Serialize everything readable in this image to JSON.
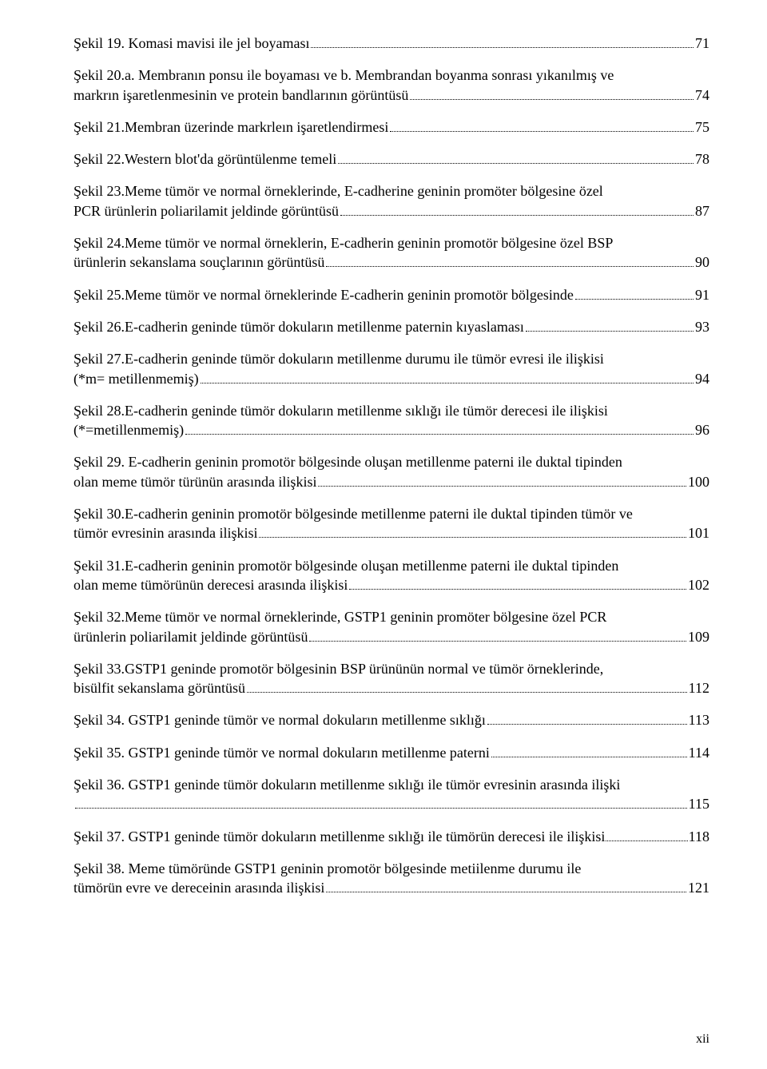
{
  "page_label": "xii",
  "entries": [
    {
      "text": "Şekil 19. Komasi mavisi ile jel boyaması",
      "page": "71",
      "wrap": false
    },
    {
      "text_lines": [
        "Şekil 20.a. Membranın ponsu ile boyaması ve  b. Membrandan boyanma sonrası  yıkanılmış ve",
        "markrın işaretlenmesinin ve protein bandlarının görüntüsü"
      ],
      "page": "74",
      "wrap": true
    },
    {
      "text": "Şekil 21.Membran üzerinde markrleın işaretlendirmesi",
      "page": "75",
      "wrap": false
    },
    {
      "text": "Şekil 22.Western blot'da görüntülenme temeli",
      "page": "78",
      "wrap": false
    },
    {
      "text_lines": [
        "Şekil 23.Meme tümör ve normal örneklerinde, E-cadherine geninin promöter bölgesine özel",
        "PCR ürünlerin poliarilamit jeldinde görüntüsü"
      ],
      "page": "87",
      "wrap": true
    },
    {
      "text_lines": [
        "Şekil 24.Meme tümör ve normal örneklerin, E-cadherin geninin promotör bölgesine özel BSP",
        "ürünlerin sekanslama souçlarının görüntüsü"
      ],
      "page": "90",
      "wrap": true
    },
    {
      "text": "Şekil 25.Meme tümör ve normal örneklerinde E-cadherin geninin promotör bölgesinde",
      "page": "91",
      "wrap": false
    },
    {
      "text": "Şekil 26.E-cadherin geninde tümör  dokuların metillenme paternin kıyaslaması",
      "page": "93",
      "wrap": false
    },
    {
      "text_lines": [
        "Şekil 27.E-cadherin geninde tümör dokuların metillenme durumu ile tümör evresi ile ilişkisi",
        "(*m= metillenmemiş)"
      ],
      "page": "94",
      "wrap": true
    },
    {
      "text_lines": [
        "Şekil 28.E-cadherin geninde tümör dokuların metillenme sıklığı ile tümör derecesi ile ilişkisi",
        "(*=metillenmemiş)"
      ],
      "page": "96",
      "wrap": true
    },
    {
      "text_lines": [
        "Şekil  29. E-cadherin geninin promotör bölgesinde oluşan metillenme paterni ile duktal tipinden",
        "olan meme tümör türünün arasında ilişkisi"
      ],
      "page": "100",
      "wrap": true
    },
    {
      "text_lines": [
        "Şekil 30.E-cadherin geninin promotör bölgesinde metillenme paterni ile duktal tipinden tümör ve",
        "tümör evresinin arasında  ilişkisi"
      ],
      "page": "101",
      "wrap": true
    },
    {
      "text_lines": [
        "Şekil 31.E-cadherin geninin promotör bölgesinde oluşan metillenme paterni ile duktal tipinden",
        "olan meme tümörünün derecesi arasında ilişkisi"
      ],
      "page": "102",
      "wrap": true
    },
    {
      "text_lines": [
        "Şekil 32.Meme tümör ve normal örneklerinde, GSTP1 geninin promöter bölgesine özel PCR",
        "ürünlerin poliarilamit jeldinde görüntüsü"
      ],
      "page": "109",
      "wrap": true
    },
    {
      "text_lines": [
        "Şekil 33.GSTP1 geninde promotör bölgesinin BSP ürününün normal ve tümör örneklerinde,",
        "bisülfit sekanslama görüntüsü"
      ],
      "page": "112",
      "wrap": true
    },
    {
      "text": "Şekil 34. GSTP1 geninde tümör ve normal dokuların metillenme sıklığı",
      "page": "113",
      "wrap": false
    },
    {
      "text": "Şekil 35. GSTP1 geninde tümör ve  normal  dokuların metillenme paterni",
      "page": "114",
      "wrap": false
    },
    {
      "text_lines": [
        "Şekil 36. GSTP1 geninde tümör dokuların metillenme sıklığı ile tümör evresinin arasında ilişki",
        ""
      ],
      "page": "115",
      "wrap": true
    },
    {
      "text": "Şekil 37. GSTP1 geninde tümör dokuların metillenme sıklığı ile tümörün derecesi ile ilişkisi",
      "page": "118",
      "wrap": false,
      "tight": true
    },
    {
      "text_lines": [
        "Şekil 38. Meme tümöründe GSTP1 geninin promotör bölgesinde metiilenme durumu ile",
        "tümörün evre ve dereceinin arasında ilişkisi"
      ],
      "page": "121",
      "wrap": true
    }
  ]
}
